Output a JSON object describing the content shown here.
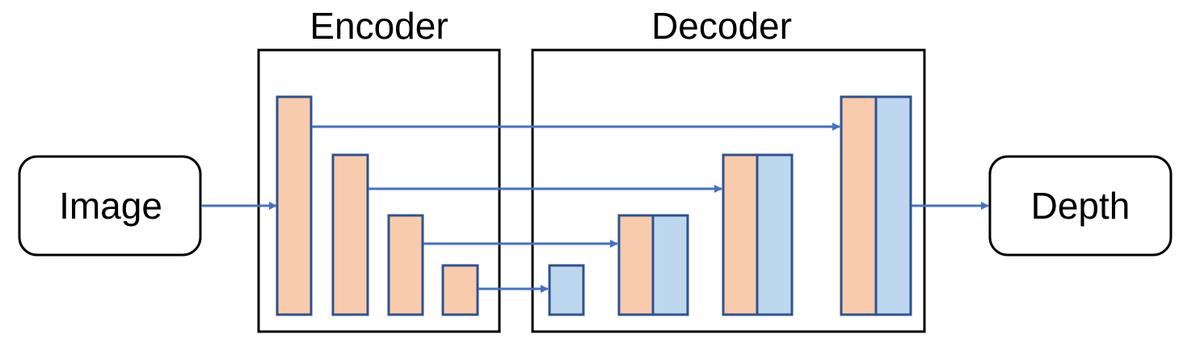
{
  "colors": {
    "encoder_fill": "#f8cbad",
    "decoder_fill": "#bdd7ee",
    "block_stroke": "#2f528f",
    "arrow": "#4472c4",
    "frame_stroke": "#000000"
  },
  "input": {
    "label": "Image"
  },
  "output": {
    "label": "Depth"
  },
  "encoder": {
    "title": "Encoder"
  },
  "decoder": {
    "title": "Decoder"
  }
}
